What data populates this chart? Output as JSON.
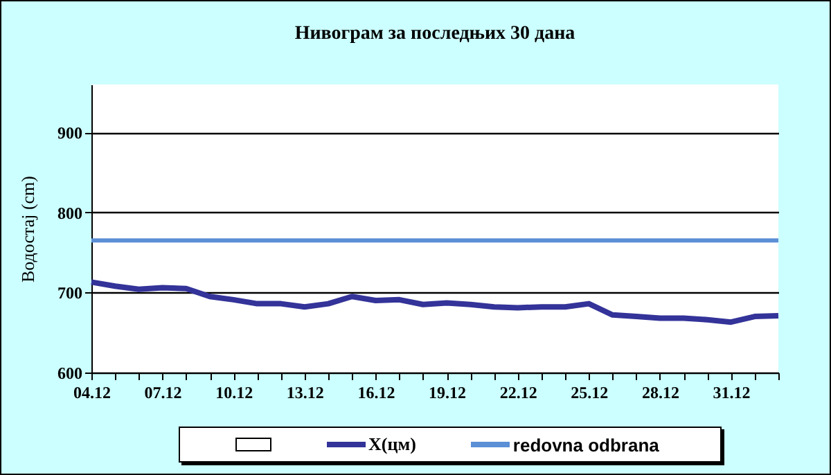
{
  "chart_data": {
    "type": "line",
    "title": "Нивограм за последњих 30 дана",
    "ylabel": "Водостај (cm)",
    "categories": [
      "04.12",
      null,
      null,
      "07.12",
      null,
      null,
      "10.12",
      null,
      null,
      "13.12",
      null,
      null,
      "16.12",
      null,
      null,
      "19.12",
      null,
      null,
      "22.12",
      null,
      null,
      "25.12",
      null,
      null,
      "28.12",
      null,
      null,
      "31.12",
      null,
      null
    ],
    "series": [
      {
        "name": "X(цм)",
        "color": "#333399",
        "values": [
          713,
          708,
          704,
          706,
          705,
          695,
          691,
          686,
          686,
          682,
          686,
          695,
          690,
          691,
          685,
          687,
          685,
          682,
          681,
          682,
          682,
          686,
          672,
          670,
          668,
          668,
          666,
          663,
          670,
          671
        ]
      }
    ],
    "ref_lines": [
      {
        "axis": "y",
        "value": 765,
        "label": "redovna odbrana",
        "color": "#5b8fd6"
      }
    ],
    "ylim": [
      600,
      960
    ],
    "yticks": [
      600,
      700,
      800,
      900
    ],
    "grid": "y",
    "legend": "bottom"
  }
}
